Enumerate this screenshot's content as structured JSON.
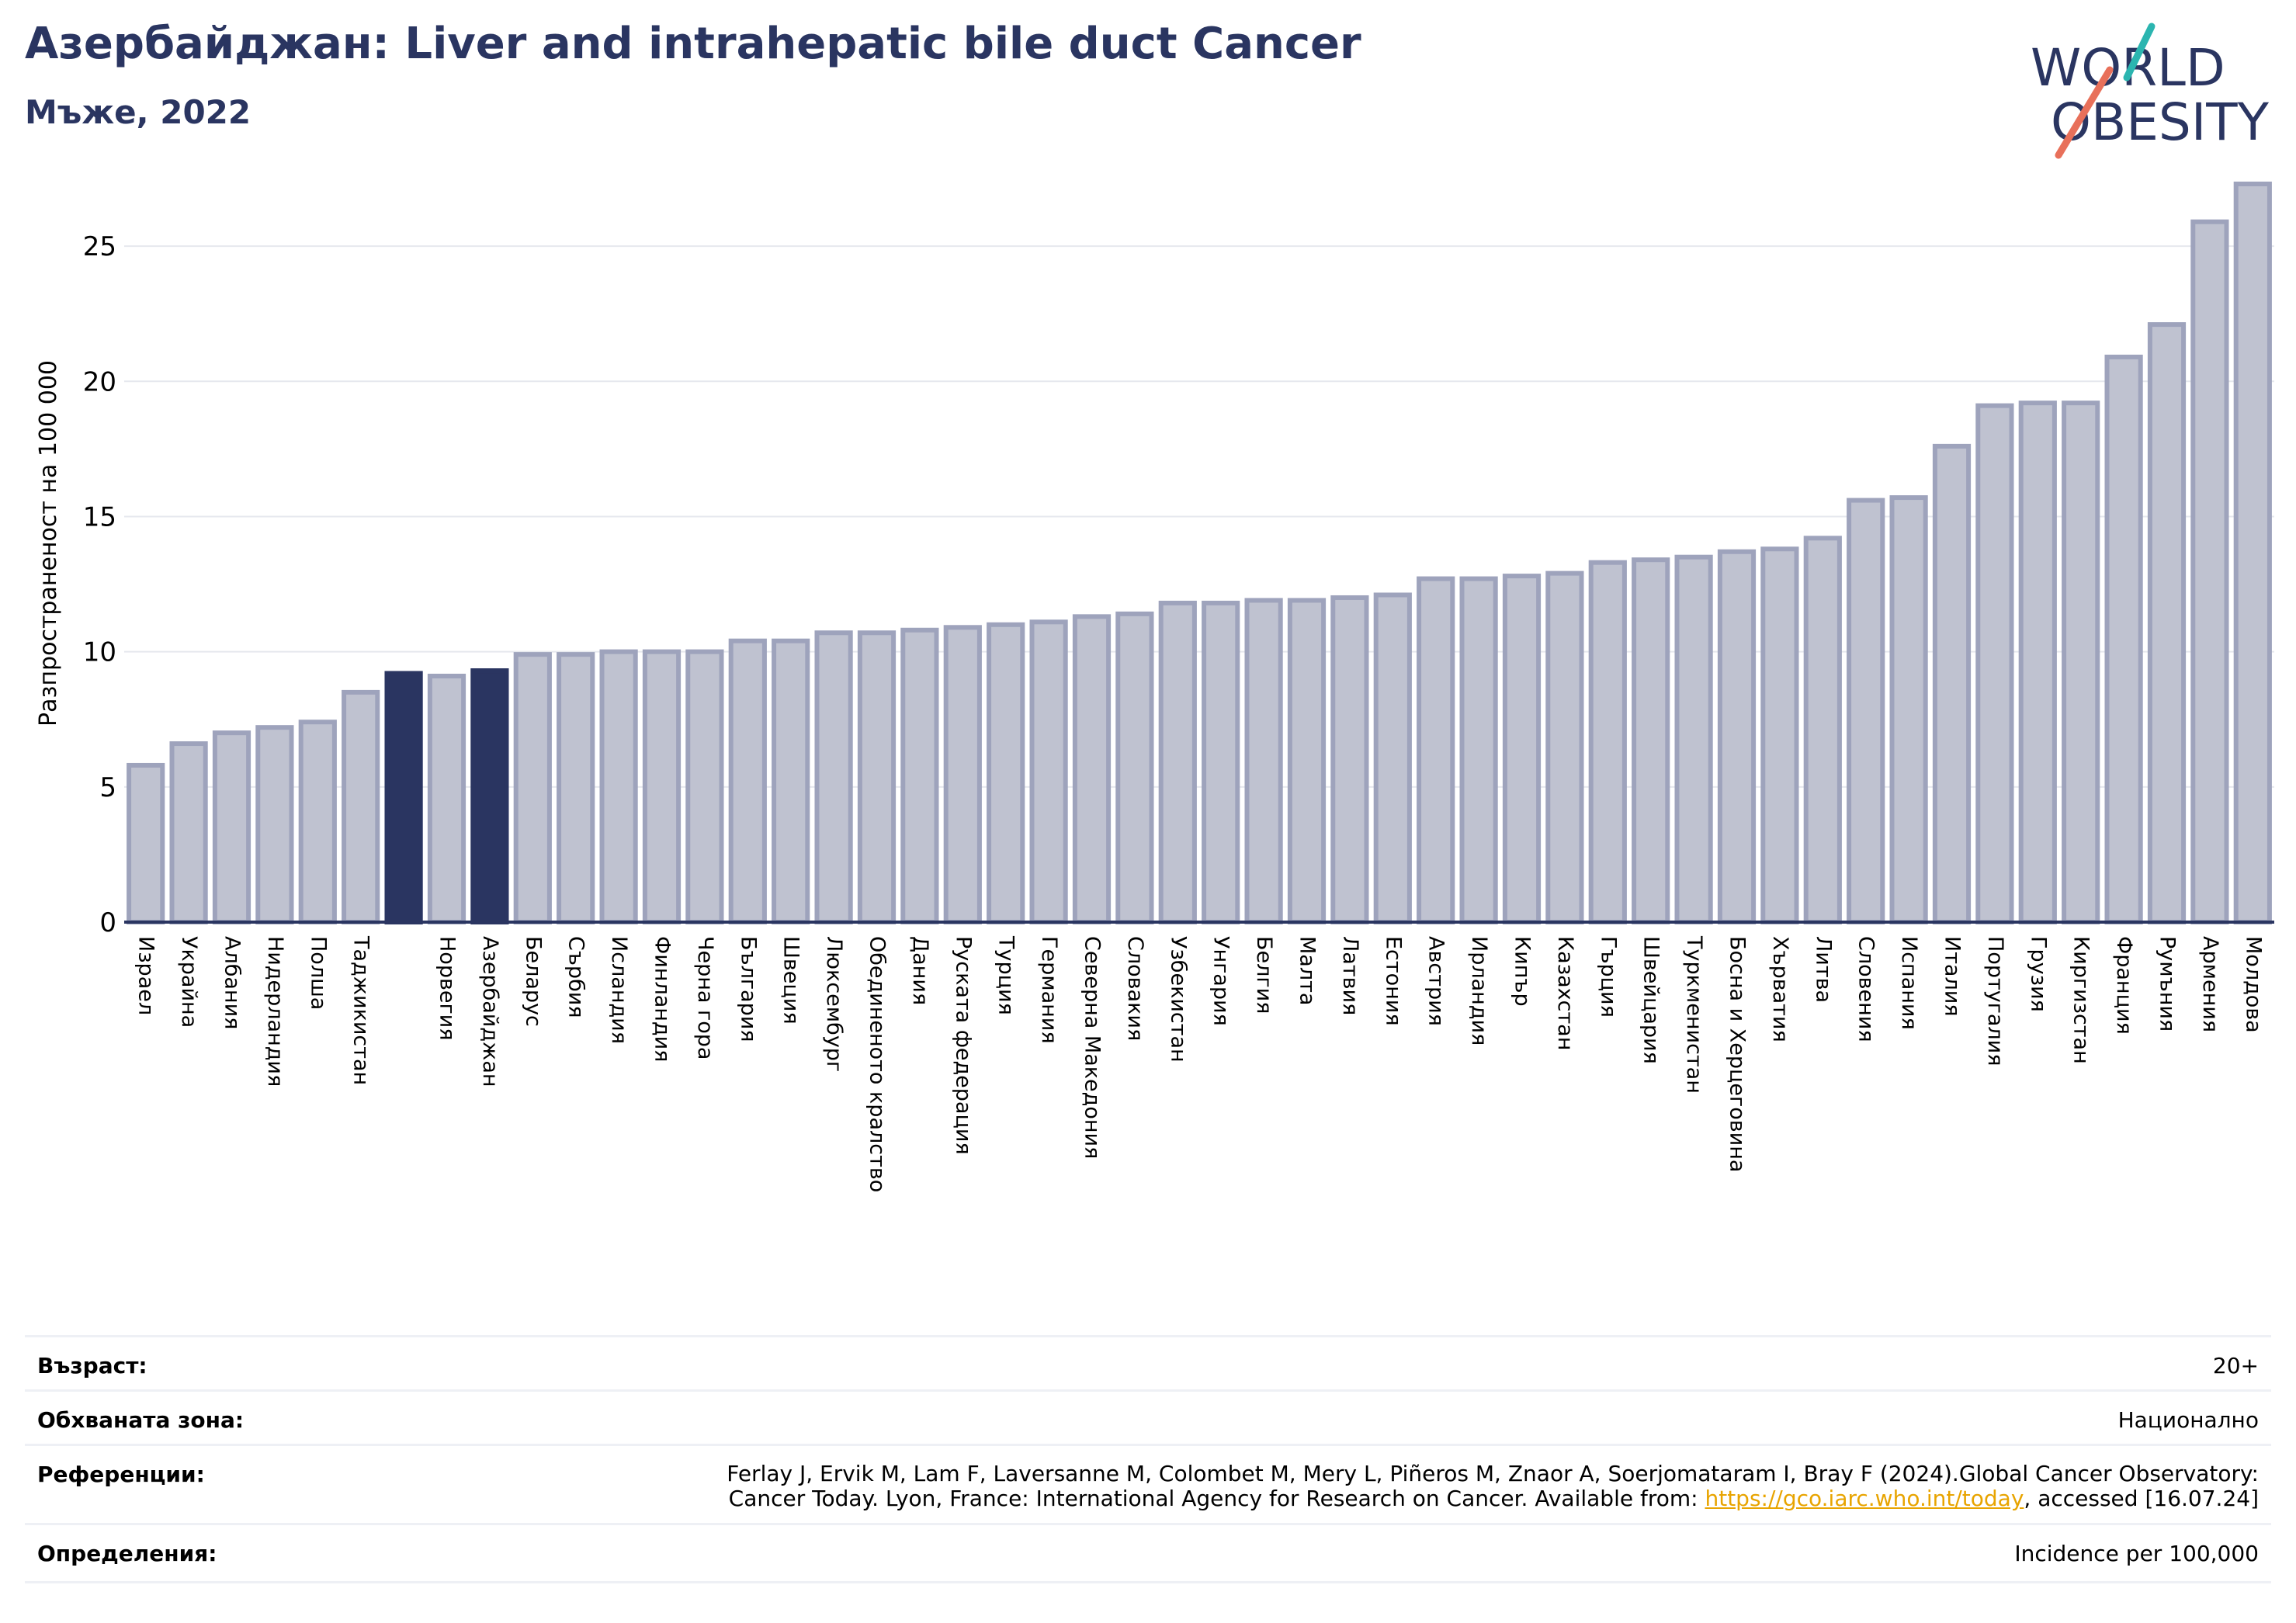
{
  "header": {
    "title": "Азербайджан: Liver and intrahepatic bile duct Cancer",
    "subtitle": "Мъже, 2022",
    "logo_line1": "WORLD",
    "logo_line2": "OBESITY"
  },
  "colors": {
    "highlight": "#2a3561",
    "bar_fill": "#bfc2d0",
    "bar_stroke": "#9ea3bc",
    "title": "#2a3561",
    "logo_teal": "#2bb5b0",
    "logo_coral": "#e8705a",
    "link": "#e8a400"
  },
  "chart_data": {
    "type": "bar",
    "ylabel": "Разпространеност  на 100 000",
    "ylim": [
      0,
      27.5
    ],
    "yticks": [
      0,
      5,
      10,
      15,
      20,
      25
    ],
    "grid": true,
    "categories": [
      "Израел",
      "Украйна",
      "Албания",
      "Нидерландия",
      "Полша",
      "Таджикистан",
      "",
      "Норвегия",
      "Азербайджан",
      "Беларус",
      "Сърбия",
      "Исландия",
      "Финландия",
      "Черна гора",
      "България",
      "Швеция",
      "Люксембург",
      "Обединеното кралство",
      "Дания",
      "Руската федерация",
      "Турция",
      "Германия",
      "Северна Македония",
      "Словакия",
      "Узбекистан",
      "Унгария",
      "Белгия",
      "Малта",
      "Латвия",
      "Естония",
      "Австрия",
      "Ирландия",
      "Кипър",
      "Казахстан",
      "Гърция",
      "Швейцария",
      "Туркменистан",
      "Босна и Херцеговина",
      "Хърватия",
      "Литва",
      "Словения",
      "Испания",
      "Италия",
      "Португалия",
      "Грузия",
      "Киргизстан",
      "Франция",
      "Румъния",
      "Армения",
      "Молдова"
    ],
    "values": [
      5.8,
      6.6,
      7.0,
      7.2,
      7.4,
      8.5,
      9.2,
      9.1,
      9.3,
      9.9,
      9.9,
      10.0,
      10.0,
      10.0,
      10.4,
      10.4,
      10.7,
      10.7,
      10.8,
      10.9,
      11.0,
      11.1,
      11.3,
      11.4,
      11.8,
      11.8,
      11.9,
      11.9,
      12.0,
      12.1,
      12.7,
      12.7,
      12.8,
      12.9,
      13.3,
      13.4,
      13.5,
      13.7,
      13.8,
      14.2,
      15.6,
      15.7,
      17.6,
      19.1,
      19.2,
      19.2,
      20.9,
      22.1,
      25.9,
      27.3
    ],
    "highlight": [
      "",
      "Азербайджан"
    ]
  },
  "info": {
    "age_label": "Възраст:",
    "age_value": "20+",
    "coverage_label": "Обхваната зона:",
    "coverage_value": "Национално",
    "references_label": "Референции:",
    "references_line1": "Ferlay J, Ervik M, Lam F, Laversanne M, Colombet M, Mery L, Piñeros M, Znaor A, Soerjomataram I, Bray F (2024).Global Cancer Observatory:",
    "references_line2_pre": "Cancer Today. Lyon, France: International Agency for Research on Cancer. Available from: ",
    "references_link": "https://gco.iarc.who.int/today",
    "references_line2_post": ", accessed [16.07.24]",
    "definitions_label": "Определения:",
    "definitions_value": "Incidence per 100,000"
  }
}
